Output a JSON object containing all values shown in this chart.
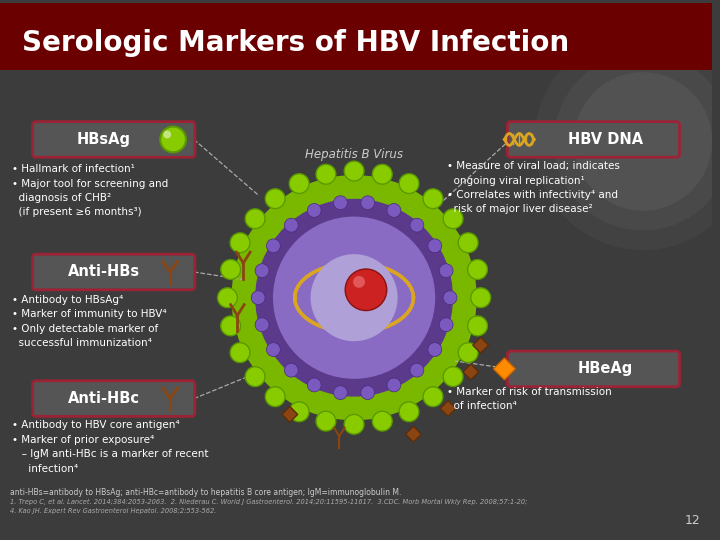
{
  "title": "Serologic Markers of HBV Infection",
  "hbsag_label": "HBsAg",
  "hbsag_bullets": [
    "• Hallmark of infection¹",
    "• Major tool for screening and\n  diagnosis of CHB²\n  (if present ≥6 months³)"
  ],
  "anti_hbs_label": "Anti-HBs",
  "anti_hbs_bullets": [
    "• Antibody to HBsAg⁴",
    "• Marker of immunity to HBV⁴",
    "• Only detectable marker of\n  successful immunization⁴"
  ],
  "anti_hbc_label": "Anti-HBc",
  "anti_hbc_bullets": [
    "• Antibody to HBV core antigen⁴",
    "• Marker of prior exposure⁴",
    "   – IgM anti-HBc is a marker of recent\n     infection⁴"
  ],
  "hbvdna_label": "HBV DNA",
  "hbvdna_bullets": [
    "• Measure of viral load; indicates\n  ongoing viral replication¹",
    "• Correlates with infectivity⁴ and\n  risk of major liver disease²"
  ],
  "hbeag_label": "HBeAg",
  "hbeag_bullets": [
    "• Marker of risk of transmission\n  of infection⁴"
  ],
  "center_label": "Hepatitis B Virus",
  "footnote": "anti-HBs=antibody to HBsAg; anti-HBc=antibody to hepatitis B core antigen; IgM=immunoglobulin M.",
  "refs_line1": "1. Trepo C, et al. Lancet. 2014;384:2053-2063.  2. Niederau C. World J Gastroenterol. 2014;20:11595-11617.  3.CDC. Morb Mortal Wkly Rep. 2008;57:1-20;",
  "refs_line2": "4. Kao JH. Expert Rev Gastroenterol Hepatol. 2008;2:553-562.",
  "page_num": "12",
  "slide_bg": "#3c3c3c",
  "title_bg": "#6a0000",
  "label_box_color": "#555555",
  "label_box_border": "#9b2335",
  "green_outer": "#88cc00",
  "green_body": "#7ab800",
  "purple_ring": "#5b3a8c",
  "purple_small": "#7b5abf",
  "inner_purple": "#8a6bc4",
  "gold_dna": "#DAA520",
  "lavender": "#b0a0d8",
  "red_core": "#cc2222",
  "brown": "#8B4513",
  "orange_diamond": "#FF8C00"
}
